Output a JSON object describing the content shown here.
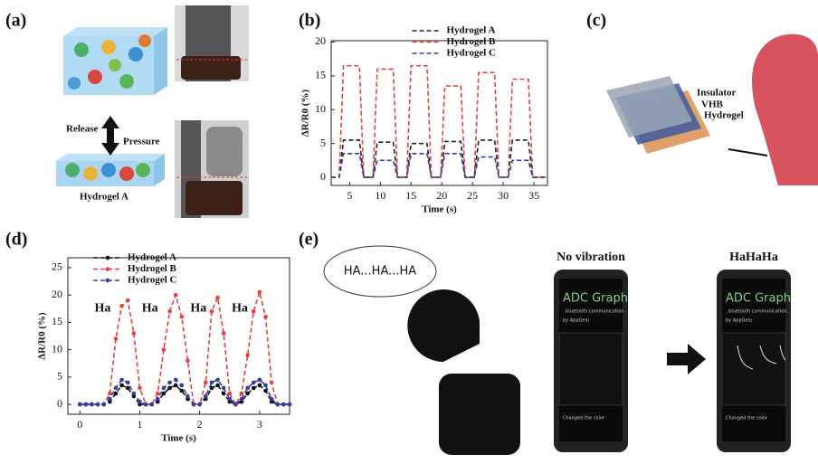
{
  "chart_data": [
    {
      "type": "line",
      "ylabel": "ΔR/R0 (%)",
      "xlabel": "Time (s)",
      "line_style": "dashed",
      "markers": false,
      "legend": "upper center",
      "x": [
        2,
        3.3,
        4,
        6.6,
        7.3,
        8.8,
        9.5,
        12.1,
        12.8,
        14.3,
        15,
        17.6,
        18.3,
        19.8,
        20.5,
        23.1,
        23.8,
        25.3,
        26,
        28.6,
        29.3,
        30.8,
        31.5,
        34.1,
        34.8,
        37
      ],
      "series": [
        {
          "name": "Hydrogel A",
          "color": "#222222",
          "values": [
            0,
            0,
            5.5,
            5.5,
            0,
            0,
            5.2,
            5.2,
            0,
            0,
            5,
            5,
            0,
            0,
            5.3,
            5.3,
            0,
            0,
            5.5,
            5.5,
            0,
            0,
            5.5,
            5.5,
            0,
            0
          ]
        },
        {
          "name": "Hydrogel B",
          "color": "#e8403a",
          "values": [
            0,
            0,
            16.5,
            16.5,
            0,
            0,
            16,
            16,
            0,
            0,
            16.5,
            16.5,
            0,
            0,
            13.5,
            13.5,
            0,
            0,
            15.5,
            15.5,
            0,
            0,
            14.5,
            14.5,
            0,
            0
          ]
        },
        {
          "name": "Hydrogel C",
          "color": "#2f3fa8",
          "values": [
            0,
            0,
            3.5,
            3.5,
            0,
            0,
            2.5,
            2.5,
            0,
            0,
            3.5,
            3.5,
            0,
            0,
            3.5,
            3.5,
            0,
            0,
            3,
            3,
            0,
            0,
            2.5,
            2.5,
            0,
            0
          ]
        }
      ],
      "xlim": [
        2,
        37.2
      ],
      "ylim": [
        -1.2,
        20.2
      ],
      "xticks": [
        5,
        10,
        15,
        20,
        25,
        30,
        35
      ],
      "yticks": [
        0,
        5,
        10,
        15,
        20
      ]
    },
    {
      "type": "line",
      "ylabel": "ΔR/R0 (%)",
      "xlabel": "Time (s)",
      "line_style": "dashed",
      "markers": true,
      "legend": "upper left",
      "x": [
        0,
        0.1,
        0.2,
        0.3,
        0.4,
        0.5,
        0.6,
        0.7,
        0.8,
        0.9,
        1,
        1.1,
        1.2,
        1.3,
        1.4,
        1.5,
        1.6,
        1.7,
        1.8,
        1.9,
        2,
        2.1,
        2.2,
        2.3,
        2.4,
        2.5,
        2.6,
        2.7,
        2.8,
        2.9,
        3,
        3.1,
        3.2,
        3.3,
        3.4,
        3.5
      ],
      "series": [
        {
          "name": "Hydrogel A",
          "color": "#111111",
          "values": [
            0,
            0,
            0,
            0,
            0,
            0.5,
            2,
            3.5,
            3,
            1.5,
            0,
            0,
            0,
            0.5,
            2,
            3,
            3.5,
            2.5,
            1,
            0,
            0,
            1,
            3,
            3.5,
            2,
            0.5,
            0,
            0.5,
            2,
            3,
            3.5,
            2.5,
            0.5,
            0,
            0,
            0
          ]
        },
        {
          "name": "Hydrogel B",
          "color": "#e8403a",
          "values": [
            0,
            0,
            0,
            0,
            0,
            2,
            12,
            18,
            19,
            13,
            3,
            0,
            0,
            2,
            10,
            17,
            20,
            16,
            8,
            0,
            0,
            4,
            17,
            19.5,
            13,
            2,
            0,
            2,
            9,
            17,
            20.5,
            16,
            4,
            0,
            0,
            0
          ]
        },
        {
          "name": "Hydrogel C",
          "color": "#2f3fa8",
          "values": [
            0,
            0,
            0,
            0,
            0,
            1,
            3,
            4.5,
            4,
            2,
            0.5,
            0,
            0,
            1,
            3,
            4,
            4.5,
            3.5,
            1.5,
            0,
            0,
            1.5,
            4,
            4.5,
            3,
            1,
            0,
            1,
            3,
            4,
            4.5,
            3.5,
            1,
            0,
            0,
            0
          ]
        }
      ],
      "annotations": [
        {
          "text": "Ha",
          "x": 0.38,
          "y": 17.5
        },
        {
          "text": "Ha",
          "x": 1.17,
          "y": 17.5
        },
        {
          "text": "Ha",
          "x": 1.98,
          "y": 17.5
        },
        {
          "text": "Ha",
          "x": 2.67,
          "y": 17.5
        }
      ],
      "xlim": [
        -0.2,
        3.5
      ],
      "ylim": [
        -1.8,
        26.8
      ],
      "xticks": [
        0,
        1,
        2,
        3
      ],
      "yticks": [
        0,
        5,
        10,
        15,
        20,
        25
      ]
    }
  ],
  "panel_labels": [
    "(a)",
    "(b)",
    "(c)",
    "(d)",
    "(e)"
  ],
  "panel_a": {
    "release": "Release",
    "pressure": "Pressure",
    "material": "Hydrogel A"
  },
  "panel_c": {
    "layers": [
      "Insulator",
      "VHB",
      "Hydrogel"
    ]
  },
  "panel_e": {
    "speech": "HA...HA...HA",
    "phone_titles": [
      "No vibration",
      "HaHaHa"
    ],
    "app_title": "ADC Graph",
    "app_subtitle": "..bluetooth communication..",
    "app_author": "by AppGeiu",
    "app_button": "Changed the color"
  }
}
